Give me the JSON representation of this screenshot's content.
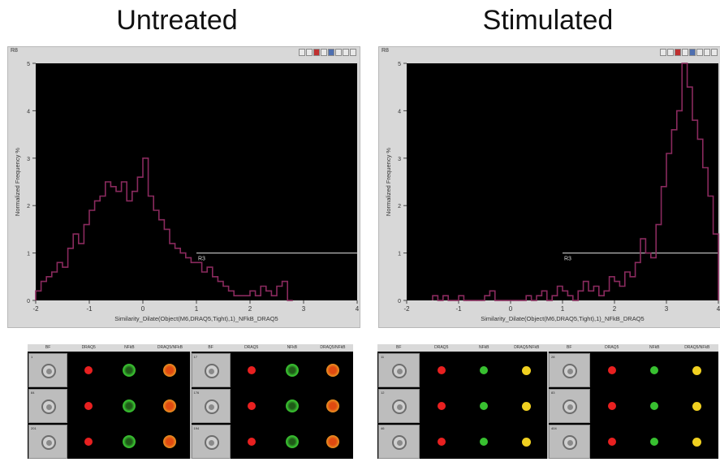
{
  "titles": {
    "left": "Untreated",
    "right": "Stimulated"
  },
  "colors": {
    "histogram_line": "#8a2a5e",
    "plot_background": "#000000",
    "gate_line": "#b8b8b8",
    "drq5_red": "#e82020",
    "nfkb_green": "#38c030",
    "merge_untreated": "#e88a20",
    "merge_stimulated": "#f0d020"
  },
  "chart_data": [
    {
      "type": "line",
      "panel": "Untreated",
      "window_label": "R8",
      "xlabel": "Similarity_Dilate(Object(M6,DRAQ5,Tight),1)_NFkB_DRAQ5",
      "ylabel": "Normalized Frequency %",
      "xlim": [
        -2,
        4
      ],
      "ylim": [
        0,
        5
      ],
      "x_ticks": [
        "-2",
        "-1",
        "0",
        "1",
        "2",
        "3",
        "4"
      ],
      "y_ticks": [
        "0",
        "1",
        "2",
        "3",
        "4",
        "5"
      ],
      "grid": false,
      "gate": {
        "label": "R3",
        "x_from": 1,
        "x_to": 4,
        "y": 1.0
      },
      "series": [
        {
          "x": [
            -2.0,
            -1.9,
            -1.8,
            -1.7,
            -1.6,
            -1.5,
            -1.4,
            -1.3,
            -1.2,
            -1.1,
            -1.0,
            -0.9,
            -0.8,
            -0.7,
            -0.6,
            -0.5,
            -0.4,
            -0.3,
            -0.2,
            -0.1,
            0.0,
            0.1,
            0.2,
            0.3,
            0.4,
            0.5,
            0.6,
            0.7,
            0.8,
            0.9,
            1.0,
            1.1,
            1.2,
            1.3,
            1.4,
            1.5,
            1.6,
            1.7,
            1.8,
            1.9,
            2.0,
            2.1,
            2.2,
            2.3,
            2.4,
            2.5,
            2.6,
            2.7
          ],
          "y": [
            0.2,
            0.4,
            0.5,
            0.6,
            0.8,
            0.7,
            1.1,
            1.4,
            1.2,
            1.6,
            1.9,
            2.1,
            2.2,
            2.5,
            2.4,
            2.3,
            2.5,
            2.1,
            2.3,
            2.6,
            3.0,
            2.2,
            1.9,
            1.7,
            1.5,
            1.2,
            1.1,
            1.0,
            0.9,
            0.8,
            0.8,
            0.6,
            0.7,
            0.5,
            0.4,
            0.3,
            0.2,
            0.1,
            0.1,
            0.1,
            0.2,
            0.1,
            0.3,
            0.2,
            0.1,
            0.3,
            0.4,
            0.0
          ]
        }
      ]
    },
    {
      "type": "line",
      "panel": "Stimulated",
      "window_label": "R8",
      "xlabel": "Similarity_Dilate(Object(M6,DRAQ5,Tight),1)_NFkB_DRAQ5",
      "ylabel": "Normalized Frequency %",
      "xlim": [
        -2,
        4
      ],
      "ylim": [
        0,
        5
      ],
      "x_ticks": [
        "-2",
        "-1",
        "0",
        "1",
        "2",
        "3",
        "4"
      ],
      "y_ticks": [
        "0",
        "1",
        "2",
        "3",
        "4",
        "5"
      ],
      "grid": false,
      "gate": {
        "label": "R3",
        "x_from": 1,
        "x_to": 4,
        "y": 1.0
      },
      "series": [
        {
          "x": [
            -1.5,
            -1.4,
            -1.3,
            -1.2,
            -1.1,
            -1.0,
            -0.9,
            -0.8,
            -0.7,
            -0.6,
            -0.5,
            -0.4,
            -0.3,
            -0.2,
            -0.1,
            0.0,
            0.1,
            0.2,
            0.3,
            0.4,
            0.5,
            0.6,
            0.7,
            0.8,
            0.9,
            1.0,
            1.1,
            1.2,
            1.3,
            1.4,
            1.5,
            1.6,
            1.7,
            1.8,
            1.9,
            2.0,
            2.1,
            2.2,
            2.3,
            2.4,
            2.5,
            2.6,
            2.7,
            2.8,
            2.9,
            3.0,
            3.1,
            3.2,
            3.3,
            3.4,
            3.5,
            3.6,
            3.7,
            3.8,
            3.9,
            4.0
          ],
          "y": [
            0.1,
            0.0,
            0.1,
            0.0,
            0.0,
            0.1,
            0.0,
            0.0,
            0.0,
            0.0,
            0.1,
            0.2,
            0.0,
            0.0,
            0.0,
            0.0,
            0.0,
            0.0,
            0.1,
            0.0,
            0.1,
            0.2,
            0.0,
            0.1,
            0.3,
            0.2,
            0.1,
            0.0,
            0.2,
            0.4,
            0.2,
            0.3,
            0.1,
            0.2,
            0.5,
            0.4,
            0.3,
            0.6,
            0.5,
            0.8,
            1.3,
            1.0,
            0.9,
            1.6,
            2.4,
            3.1,
            3.6,
            4.0,
            5.0,
            4.5,
            3.8,
            3.4,
            2.8,
            2.2,
            1.4,
            0.5
          ]
        }
      ]
    }
  ],
  "gallery_left": {
    "columns": [
      "BF",
      "DRAQ5",
      "NFkB",
      "DRAQ5/NFkB",
      "BF",
      "DRAQ5",
      "NFkB",
      "DRAQ5/NFkB"
    ],
    "row_ids": [
      "1",
      "84",
      "201",
      "17",
      "176",
      "194"
    ]
  },
  "gallery_right": {
    "columns": [
      "BF",
      "DRAQ5",
      "NFkB",
      "DRAQ5/NFkB",
      "BF",
      "DRAQ5",
      "NFkB",
      "DRAQ5/NFkB"
    ],
    "row_ids": [
      "11",
      "12",
      "46",
      "28",
      "83",
      "404"
    ]
  }
}
